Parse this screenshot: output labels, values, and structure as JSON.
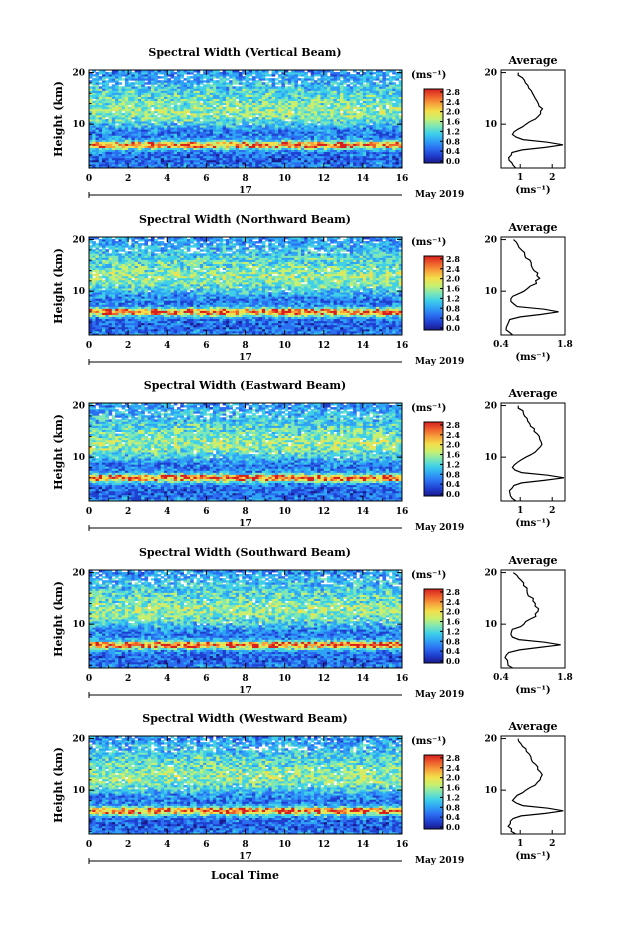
{
  "figure": {
    "xlabel": "Local Time",
    "date_label": "17",
    "month_label": "May 2019",
    "cbar_unit": "(ms⁻¹)",
    "avg_title": "Average",
    "avg_unit": "(ms⁻¹)"
  },
  "chart_data": [
    {
      "type": "heatmap",
      "title": "Spectral Width (Vertical Beam)",
      "ylabel": "Height (km)",
      "xlim": [
        0,
        16
      ],
      "ylim": [
        1.5,
        20.5
      ],
      "x_ticks": [
        "0",
        "2",
        "4",
        "6",
        "8",
        "10",
        "12",
        "14",
        "16"
      ],
      "y_ticks": [
        "20",
        "10"
      ],
      "colorbar_ticks": [
        "0.0",
        "0.4",
        "0.8",
        "1.2",
        "1.6",
        "2.0",
        "2.4",
        "2.8"
      ],
      "profile_scale": 1.0,
      "average": {
        "x_ticks": [
          "1",
          "2"
        ],
        "xlim": [
          0.4,
          2.4
        ],
        "y_ticks": [
          "20",
          "10"
        ]
      }
    },
    {
      "type": "heatmap",
      "title": "Spectral Width (Northward Beam)",
      "ylabel": "Height (km)",
      "xlim": [
        0,
        16
      ],
      "ylim": [
        1.5,
        20.5
      ],
      "x_ticks": [
        "0",
        "2",
        "4",
        "6",
        "8",
        "10",
        "12",
        "14",
        "16"
      ],
      "y_ticks": [
        "20",
        "10"
      ],
      "colorbar_ticks": [
        "0.0",
        "0.4",
        "0.8",
        "1.2",
        "1.6",
        "2.0",
        "2.4",
        "2.8"
      ],
      "profile_scale": 1.0,
      "average": {
        "x_ticks": [
          "0.4",
          "1.8"
        ],
        "xlim": [
          0.4,
          1.8
        ],
        "y_ticks": [
          "20",
          "10"
        ]
      }
    },
    {
      "type": "heatmap",
      "title": "Spectral Width (Eastward Beam)",
      "ylabel": "Height (km)",
      "xlim": [
        0,
        16
      ],
      "ylim": [
        1.5,
        20.5
      ],
      "x_ticks": [
        "0",
        "2",
        "4",
        "6",
        "8",
        "10",
        "12",
        "14",
        "16"
      ],
      "y_ticks": [
        "20",
        "10"
      ],
      "colorbar_ticks": [
        "0.0",
        "0.4",
        "0.8",
        "1.2",
        "1.6",
        "2.0",
        "2.4",
        "2.8"
      ],
      "profile_scale": 1.0,
      "average": {
        "x_ticks": [
          "1",
          "2"
        ],
        "xlim": [
          0.4,
          2.4
        ],
        "y_ticks": [
          "20",
          "10"
        ]
      }
    },
    {
      "type": "heatmap",
      "title": "Spectral Width (Southward Beam)",
      "ylabel": "Height (km)",
      "xlim": [
        0,
        16
      ],
      "ylim": [
        1.5,
        20.5
      ],
      "x_ticks": [
        "0",
        "2",
        "4",
        "6",
        "8",
        "10",
        "12",
        "14",
        "16"
      ],
      "y_ticks": [
        "20",
        "10"
      ],
      "colorbar_ticks": [
        "0.0",
        "0.4",
        "0.8",
        "1.2",
        "1.6",
        "2.0",
        "2.4",
        "2.8"
      ],
      "profile_scale": 1.0,
      "average": {
        "x_ticks": [
          "0.4",
          "1.8"
        ],
        "xlim": [
          0.4,
          1.8
        ],
        "y_ticks": [
          "20",
          "10"
        ]
      }
    },
    {
      "type": "heatmap",
      "title": "Spectral Width (Westward Beam)",
      "ylabel": "Height (km)",
      "xlim": [
        0,
        16
      ],
      "ylim": [
        1.5,
        20.5
      ],
      "x_ticks": [
        "0",
        "2",
        "4",
        "6",
        "8",
        "10",
        "12",
        "14",
        "16"
      ],
      "y_ticks": [
        "20",
        "10"
      ],
      "colorbar_ticks": [
        "0.0",
        "0.4",
        "0.8",
        "1.2",
        "1.6",
        "2.0",
        "2.4",
        "2.8"
      ],
      "profile_scale": 1.0,
      "average": {
        "x_ticks": [
          "1",
          "2"
        ],
        "xlim": [
          0.4,
          2.4
        ],
        "y_ticks": [
          "20",
          "10"
        ]
      }
    }
  ],
  "colormap": [
    "#1a1a8c",
    "#1f3fcf",
    "#2c6ef2",
    "#2fa3f5",
    "#3fd0e8",
    "#7fe7b5",
    "#c9ef6e",
    "#f3e04b",
    "#f7a23b",
    "#ee5f2c",
    "#d81f1f"
  ],
  "profile": {
    "heights_km": [
      1.5,
      2,
      2.5,
      3,
      3.5,
      4,
      4.5,
      5,
      5.5,
      6,
      6.5,
      7,
      7.5,
      8,
      8.5,
      9,
      9.5,
      10,
      10.5,
      11,
      11.5,
      12,
      12.5,
      13,
      13.5,
      14,
      14.5,
      15,
      15.5,
      16,
      16.5,
      17,
      17.5,
      18,
      18.5,
      19,
      19.5,
      20
    ],
    "width_ms": [
      0.7,
      0.6,
      0.55,
      0.5,
      0.5,
      0.55,
      0.6,
      0.9,
      1.6,
      2.2,
      1.7,
      0.9,
      0.7,
      0.6,
      0.65,
      0.75,
      0.9,
      1.05,
      1.15,
      1.3,
      1.4,
      1.45,
      1.5,
      1.5,
      1.45,
      1.4,
      1.35,
      1.3,
      1.25,
      1.2,
      1.15,
      1.1,
      1.05,
      1.0,
      0.95,
      0.9,
      0.8,
      0.75
    ]
  }
}
